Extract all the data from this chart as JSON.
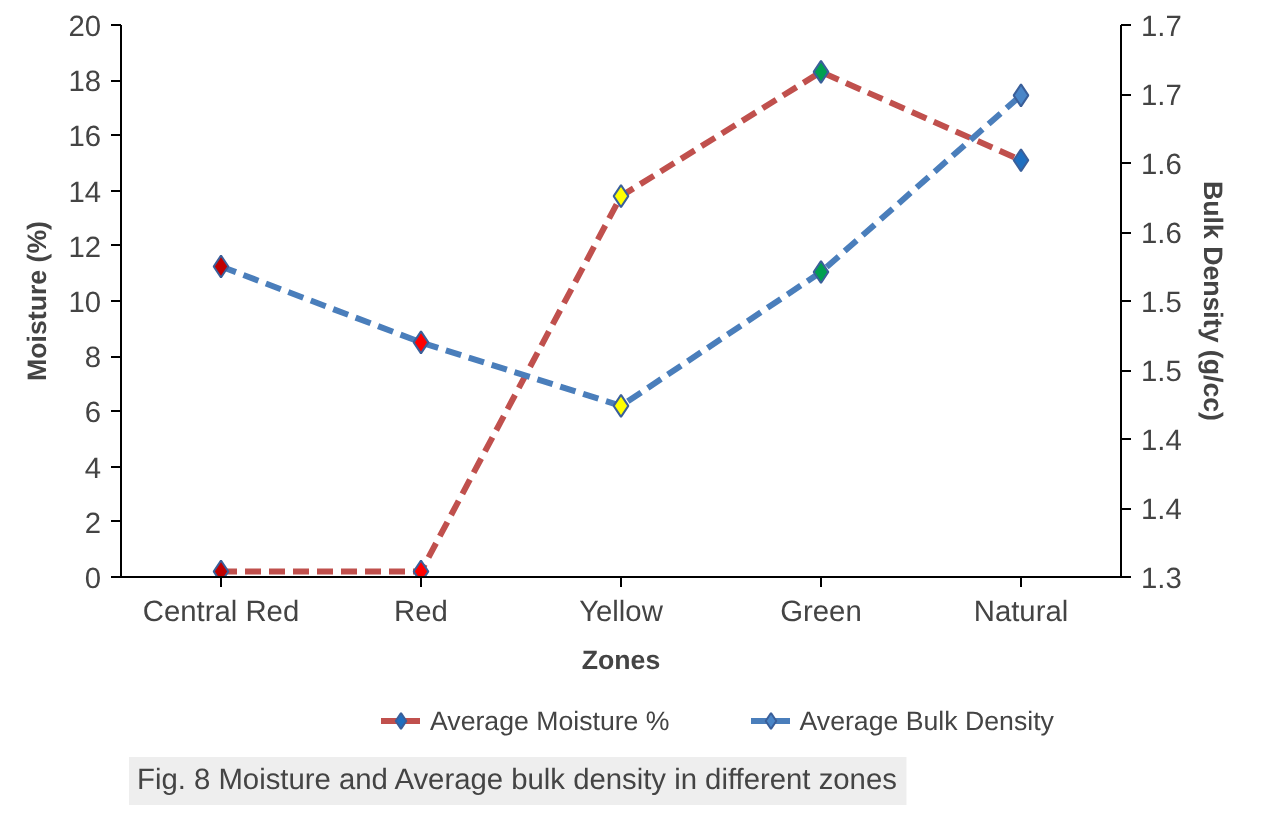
{
  "chart_data": {
    "type": "line",
    "xlabel": "Zones",
    "ylabel": "Moisture (%)",
    "y2label": "Bulk Density (g/cc)",
    "categories": [
      "Central Red",
      "Red",
      "Yellow",
      "Green",
      "Natural"
    ],
    "series": [
      {
        "name": "Average Moisture %",
        "color": "#c0504d",
        "values": [
          0.2,
          0.2,
          13.8,
          18.3,
          15.1
        ],
        "colors": [
          "#c00000",
          "#ff0000",
          "#ffff00",
          "#00a050",
          "#1f6fc0"
        ]
      },
      {
        "name": "Average Bulk Density",
        "color": "#4a7ebb",
        "axis": "y2",
        "values": [
          1.525,
          1.47,
          1.424,
          1.521,
          1.649
        ],
        "colors": [
          "#c00000",
          "#ff0000",
          "#ffff00",
          "#00a050",
          "#4a86c8"
        ]
      }
    ],
    "ylim": [
      0,
      20
    ],
    "yticks": [
      0,
      2,
      4,
      6,
      8,
      10,
      12,
      14,
      16,
      18,
      20
    ],
    "y2lim": [
      1.3,
      1.7
    ],
    "y2ticks": [
      1.3,
      {
        "value": 1.35,
        "label": "1.4"
      },
      1.4,
      {
        "value": 1.45,
        "label": "1.5"
      },
      1.5,
      {
        "value": 1.55,
        "label": "1.6"
      },
      1.6,
      {
        "value": 1.65,
        "label": "1.7"
      },
      1.7
    ],
    "marker": "diamond",
    "line_style": "dashed",
    "grid": false,
    "legend": "bottom",
    "annotations": [
      "Fig. 8 Moisture and Average bulk density in different zones"
    ]
  }
}
